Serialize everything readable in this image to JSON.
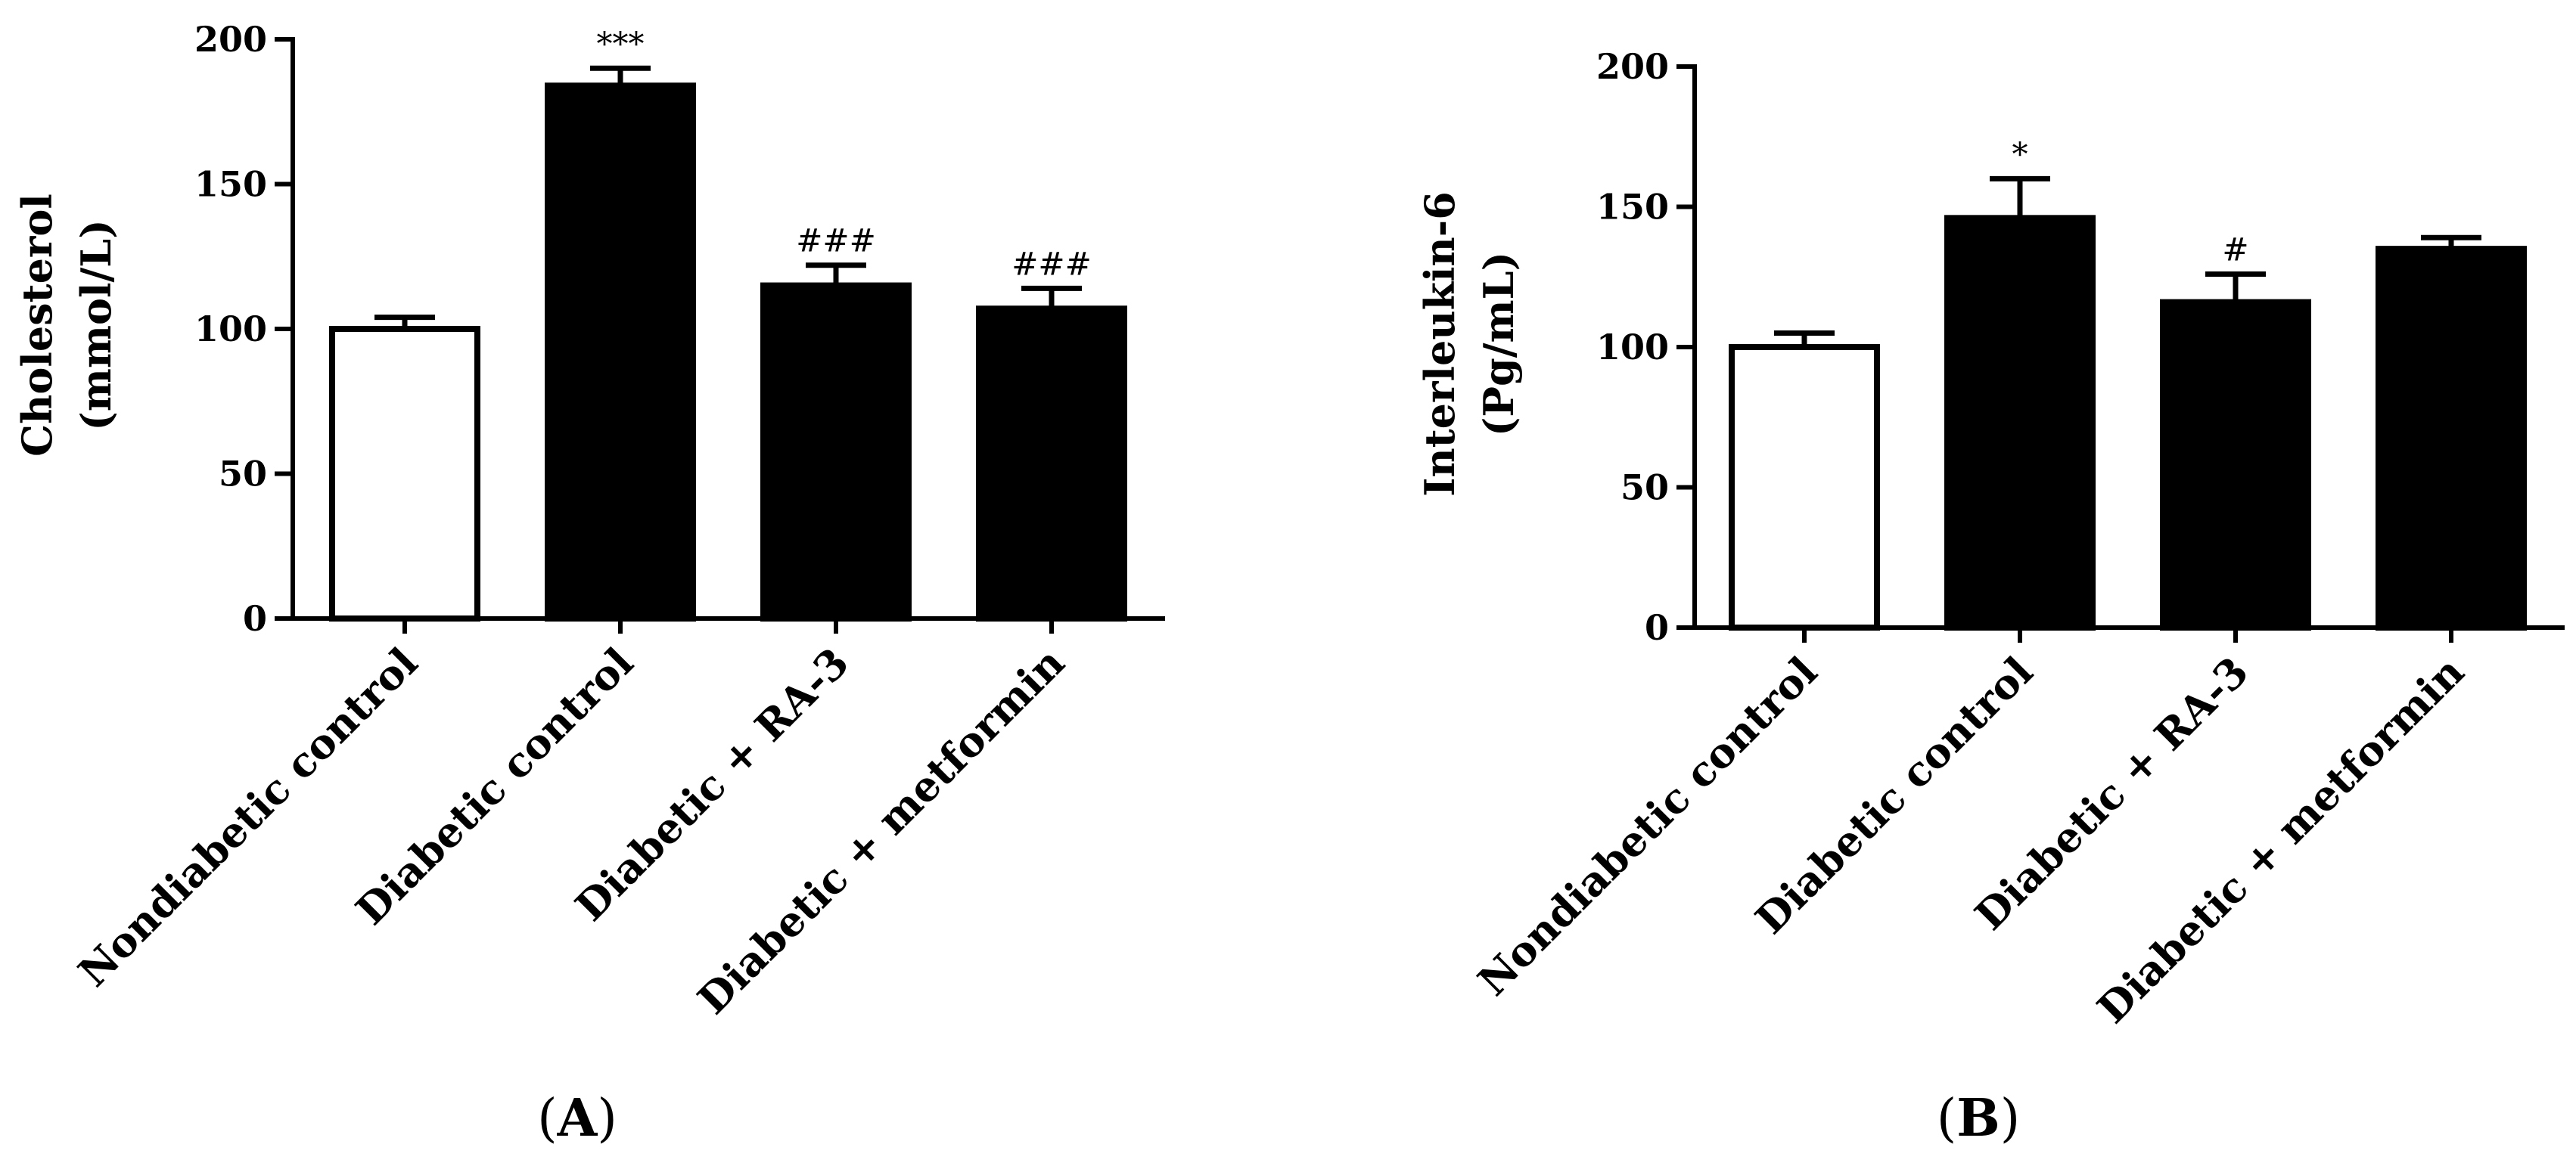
{
  "chart_data": [
    {
      "type": "bar",
      "panel_label": "A",
      "categories": [
        "Nondiabetic control",
        "Diabetic control",
        "Diabetic + RA-3",
        "Diabetic + metformin"
      ],
      "values": [
        100,
        184,
        115,
        107
      ],
      "errors": [
        4,
        6,
        7,
        7
      ],
      "significance": [
        "",
        "***",
        "###",
        "###"
      ],
      "bar_colors": [
        "#ffffff",
        "#000000",
        "#000000",
        "#000000"
      ],
      "ylabel_line1": "Cholesterol",
      "ylabel_line2": "(mmol/L)",
      "xlabel": "",
      "ylim": [
        0,
        200
      ],
      "yticks": [
        "0",
        "50",
        "100",
        "150",
        "200"
      ],
      "grid": false
    },
    {
      "type": "bar",
      "panel_label": "B",
      "categories": [
        "Nondiabetic control",
        "Diabetic control",
        "Diabetic + RA-3",
        "Diabetic + metformin"
      ],
      "values": [
        100,
        146,
        116,
        135
      ],
      "errors": [
        5,
        14,
        10,
        4
      ],
      "significance": [
        "",
        "*",
        "#",
        ""
      ],
      "bar_colors": [
        "#ffffff",
        "#000000",
        "#000000",
        "#000000"
      ],
      "ylabel_line1": "Interleukin-6",
      "ylabel_line2": "(Pg/mL)",
      "xlabel": "",
      "ylim": [
        0,
        200
      ],
      "yticks": [
        "0",
        "50",
        "100",
        "150",
        "200"
      ],
      "grid": false
    }
  ]
}
